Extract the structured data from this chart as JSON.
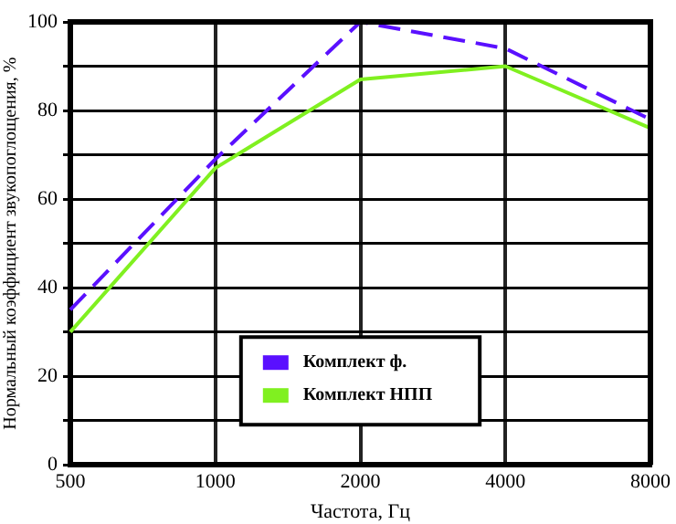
{
  "chart_data": {
    "type": "line",
    "xlabel": "Частота, Гц",
    "ylabel": "Нормальный коэффициент звукопоглощения, %",
    "categories": [
      "500",
      "1000",
      "2000",
      "4000",
      "8000"
    ],
    "series": [
      {
        "name": "Комплект ф.",
        "color": "#5a10ff",
        "values": [
          35,
          69,
          100,
          94,
          78
        ],
        "line_style": "dashed"
      },
      {
        "name": "Комплект НПП",
        "color": "#80f020",
        "values": [
          30,
          67,
          87,
          90,
          76
        ],
        "line_style": "solid"
      }
    ],
    "ylim": [
      0,
      100
    ],
    "yticks": [
      0,
      {
        "value": 10,
        "label": null
      },
      20,
      {
        "value": 30,
        "label": null
      },
      40,
      {
        "value": 50,
        "label": null
      },
      60,
      {
        "value": 70,
        "label": null
      },
      80,
      {
        "value": 90,
        "label": null
      },
      100
    ],
    "grid": true,
    "legend": "bottom",
    "marker": "none"
  }
}
